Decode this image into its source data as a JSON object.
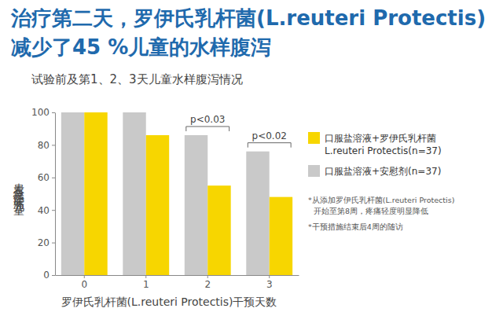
{
  "chart_data": {
    "type": "bar",
    "title": "治疗第二天，罗伊氏乳杆菌(L.reuteri Protectis)\n减少了45 %儿童的水样腹泻",
    "subtitle": "试验前及第1、2、3天儿童水样腹泻情况",
    "xlabel": "罗伊氏乳杆菌(L.reuteri Protectis)干预天数",
    "ylabel": "患有急性腹泻儿童%",
    "categories": [
      "0",
      "1",
      "2",
      "3"
    ],
    "series": [
      {
        "name": "口服盐溶液+安慰剂(n=37)",
        "color": "#c9c9c9",
        "values": [
          100,
          100,
          86,
          76
        ]
      },
      {
        "name": "口服盐溶液+罗伊氏乳杆菌\nL.reuteri Protectis(n=37)",
        "color": "#f7d600",
        "values": [
          100,
          86,
          55,
          48
        ]
      }
    ],
    "ylim": [
      0,
      100
    ],
    "yticks": [
      0,
      20,
      40,
      60,
      80,
      100
    ],
    "grid": false,
    "legend": "right",
    "annotations": [
      {
        "text": "p<0.03",
        "x": "2"
      },
      {
        "text": "p<0.02",
        "x": "3"
      }
    ],
    "notes": [
      "*从添加罗伊氏乳杆菌(L.reuteri Protectis)\n开始至第8周，疼痛轻度明显降低",
      "*干预措施结束后4周的随访"
    ]
  }
}
